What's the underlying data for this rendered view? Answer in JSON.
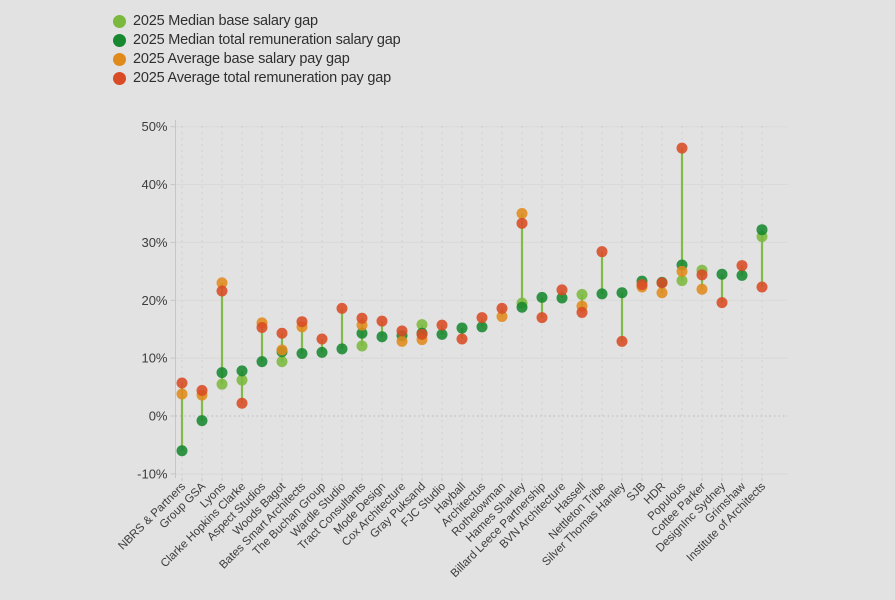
{
  "chart_data": {
    "type": "scatter",
    "title": "",
    "subtitle": "",
    "categories": [
      "NBRS & Partners",
      "Group GSA",
      "Lyons",
      "Clarke Hopkins Clarke",
      "Aspect Studios",
      "Woods Bagot",
      "Bates Smart Architects",
      "The Buchan Group",
      "Wardle Studio",
      "Tract Consultants",
      "Mode Design",
      "Cox Architecture",
      "Gray Puksand",
      "FJC Studio",
      "Hayball",
      "Architectus",
      "Rothelowman",
      "Hames Sharley",
      "Billard Leece Partnership",
      "BVN Architecture",
      "Hassell",
      "Nettleton Tribe",
      "Silver Thomas Hanley",
      "SJB",
      "HDR",
      "Populous",
      "Cottee Parker",
      "DesignInc Sydney",
      "Grimshaw",
      "Institute of Architects"
    ],
    "series": [
      {
        "key": "median_base",
        "name": "2025 Median base salary gap",
        "color": "#7bb83e",
        "values": [
          null,
          null,
          5.5,
          6.2,
          null,
          9.4,
          null,
          null,
          null,
          12.1,
          null,
          null,
          15.8,
          null,
          null,
          null,
          null,
          19.5,
          null,
          null,
          21.0,
          null,
          null,
          null,
          null,
          23.4,
          25.2,
          null,
          null,
          31.0
        ]
      },
      {
        "key": "median_total",
        "name": "2025 Median total remuneration salary gap",
        "color": "#17882f",
        "values": [
          -6.0,
          -0.8,
          7.5,
          7.8,
          9.4,
          11.1,
          10.8,
          11.0,
          11.6,
          14.3,
          13.7,
          13.9,
          14.3,
          14.1,
          15.2,
          15.4,
          null,
          18.8,
          20.5,
          20.4,
          null,
          21.1,
          21.3,
          23.3,
          23.1,
          26.1,
          null,
          24.5,
          24.3,
          32.2
        ]
      },
      {
        "key": "avg_base",
        "name": "2025 Average base salary pay gap",
        "color": "#e08a1b",
        "values": [
          3.8,
          3.6,
          23.0,
          null,
          16.1,
          11.4,
          15.4,
          null,
          null,
          15.7,
          null,
          12.9,
          13.2,
          null,
          null,
          null,
          17.2,
          35.0,
          null,
          null,
          19.0,
          null,
          null,
          22.3,
          21.3,
          25.0,
          21.9,
          null,
          null,
          null
        ]
      },
      {
        "key": "avg_total",
        "name": "2025 Average total remuneration pay gap",
        "color": "#d94b24",
        "values": [
          5.7,
          4.4,
          21.6,
          2.2,
          15.3,
          14.3,
          16.3,
          13.3,
          18.6,
          16.9,
          16.4,
          14.7,
          14.1,
          15.7,
          13.3,
          17.0,
          18.6,
          33.3,
          17.0,
          21.8,
          17.9,
          28.4,
          12.9,
          22.7,
          23.0,
          46.3,
          24.4,
          19.6,
          26.0,
          22.3
        ]
      }
    ],
    "connector": {
      "color": "#7cb740",
      "description": "vertical light-green line spanning min to max value within each category"
    },
    "xlabel": "",
    "ylabel": "",
    "y_axis": {
      "min": -10,
      "max": 50,
      "step": 10,
      "tick_labels": [
        "-10%",
        "0%",
        "10%",
        "20%",
        "30%",
        "40%",
        "50%"
      ],
      "format": "percent"
    },
    "legend_position": "top-left",
    "grid": {
      "vertical": "dashed line per category",
      "horizontal": "faint line each 10%",
      "zero_line": "dotted"
    }
  },
  "colors": {
    "background": "#e2e2e2",
    "axis_line": "#c6c6c6",
    "grid_vertical": "#d0d0d0",
    "grid_horizontal": "#d9d9d9",
    "zero_line": "#b8b8b8",
    "text": "#3c3c3c"
  }
}
